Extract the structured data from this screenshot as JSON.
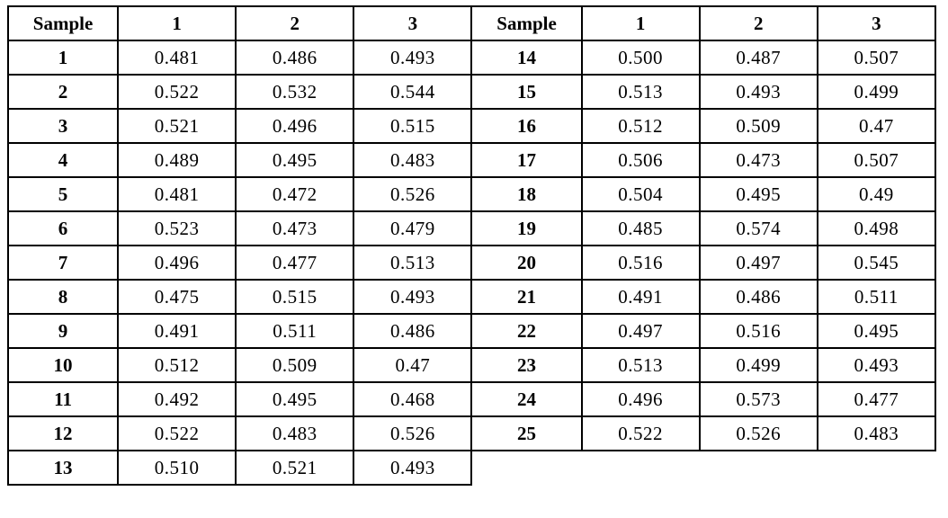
{
  "page": {
    "background_color": "#ffffff",
    "text_color": "#000000",
    "grid_border_color": "#000000"
  },
  "table": {
    "headers": [
      "Sample",
      "1",
      "2",
      "3",
      "Sample",
      "1",
      "2",
      "3"
    ],
    "rows": [
      [
        "1",
        "0.481",
        "0.486",
        "0.493",
        "14",
        "0.500",
        "0.487",
        "0.507"
      ],
      [
        "2",
        "0.522",
        "0.532",
        "0.544",
        "15",
        "0.513",
        "0.493",
        "0.499"
      ],
      [
        "3",
        "0.521",
        "0.496",
        "0.515",
        "16",
        "0.512",
        "0.509",
        "0.47"
      ],
      [
        "4",
        "0.489",
        "0.495",
        "0.483",
        "17",
        "0.506",
        "0.473",
        "0.507"
      ],
      [
        "5",
        "0.481",
        "0.472",
        "0.526",
        "18",
        "0.504",
        "0.495",
        "0.49"
      ],
      [
        "6",
        "0.523",
        "0.473",
        "0.479",
        "19",
        "0.485",
        "0.574",
        "0.498"
      ],
      [
        "7",
        "0.496",
        "0.477",
        "0.513",
        "20",
        "0.516",
        "0.497",
        "0.545"
      ],
      [
        "8",
        "0.475",
        "0.515",
        "0.493",
        "21",
        "0.491",
        "0.486",
        "0.511"
      ],
      [
        "9",
        "0.491",
        "0.511",
        "0.486",
        "22",
        "0.497",
        "0.516",
        "0.495"
      ],
      [
        "10",
        "0.512",
        "0.509",
        "0.47",
        "23",
        "0.513",
        "0.499",
        "0.493"
      ],
      [
        "11",
        "0.492",
        "0.495",
        "0.468",
        "24",
        "0.496",
        "0.573",
        "0.477"
      ],
      [
        "12",
        "0.522",
        "0.483",
        "0.526",
        "25",
        "0.522",
        "0.526",
        "0.483"
      ],
      [
        "13",
        "0.510",
        "0.521",
        "0.493",
        null,
        null,
        null,
        null
      ]
    ]
  }
}
